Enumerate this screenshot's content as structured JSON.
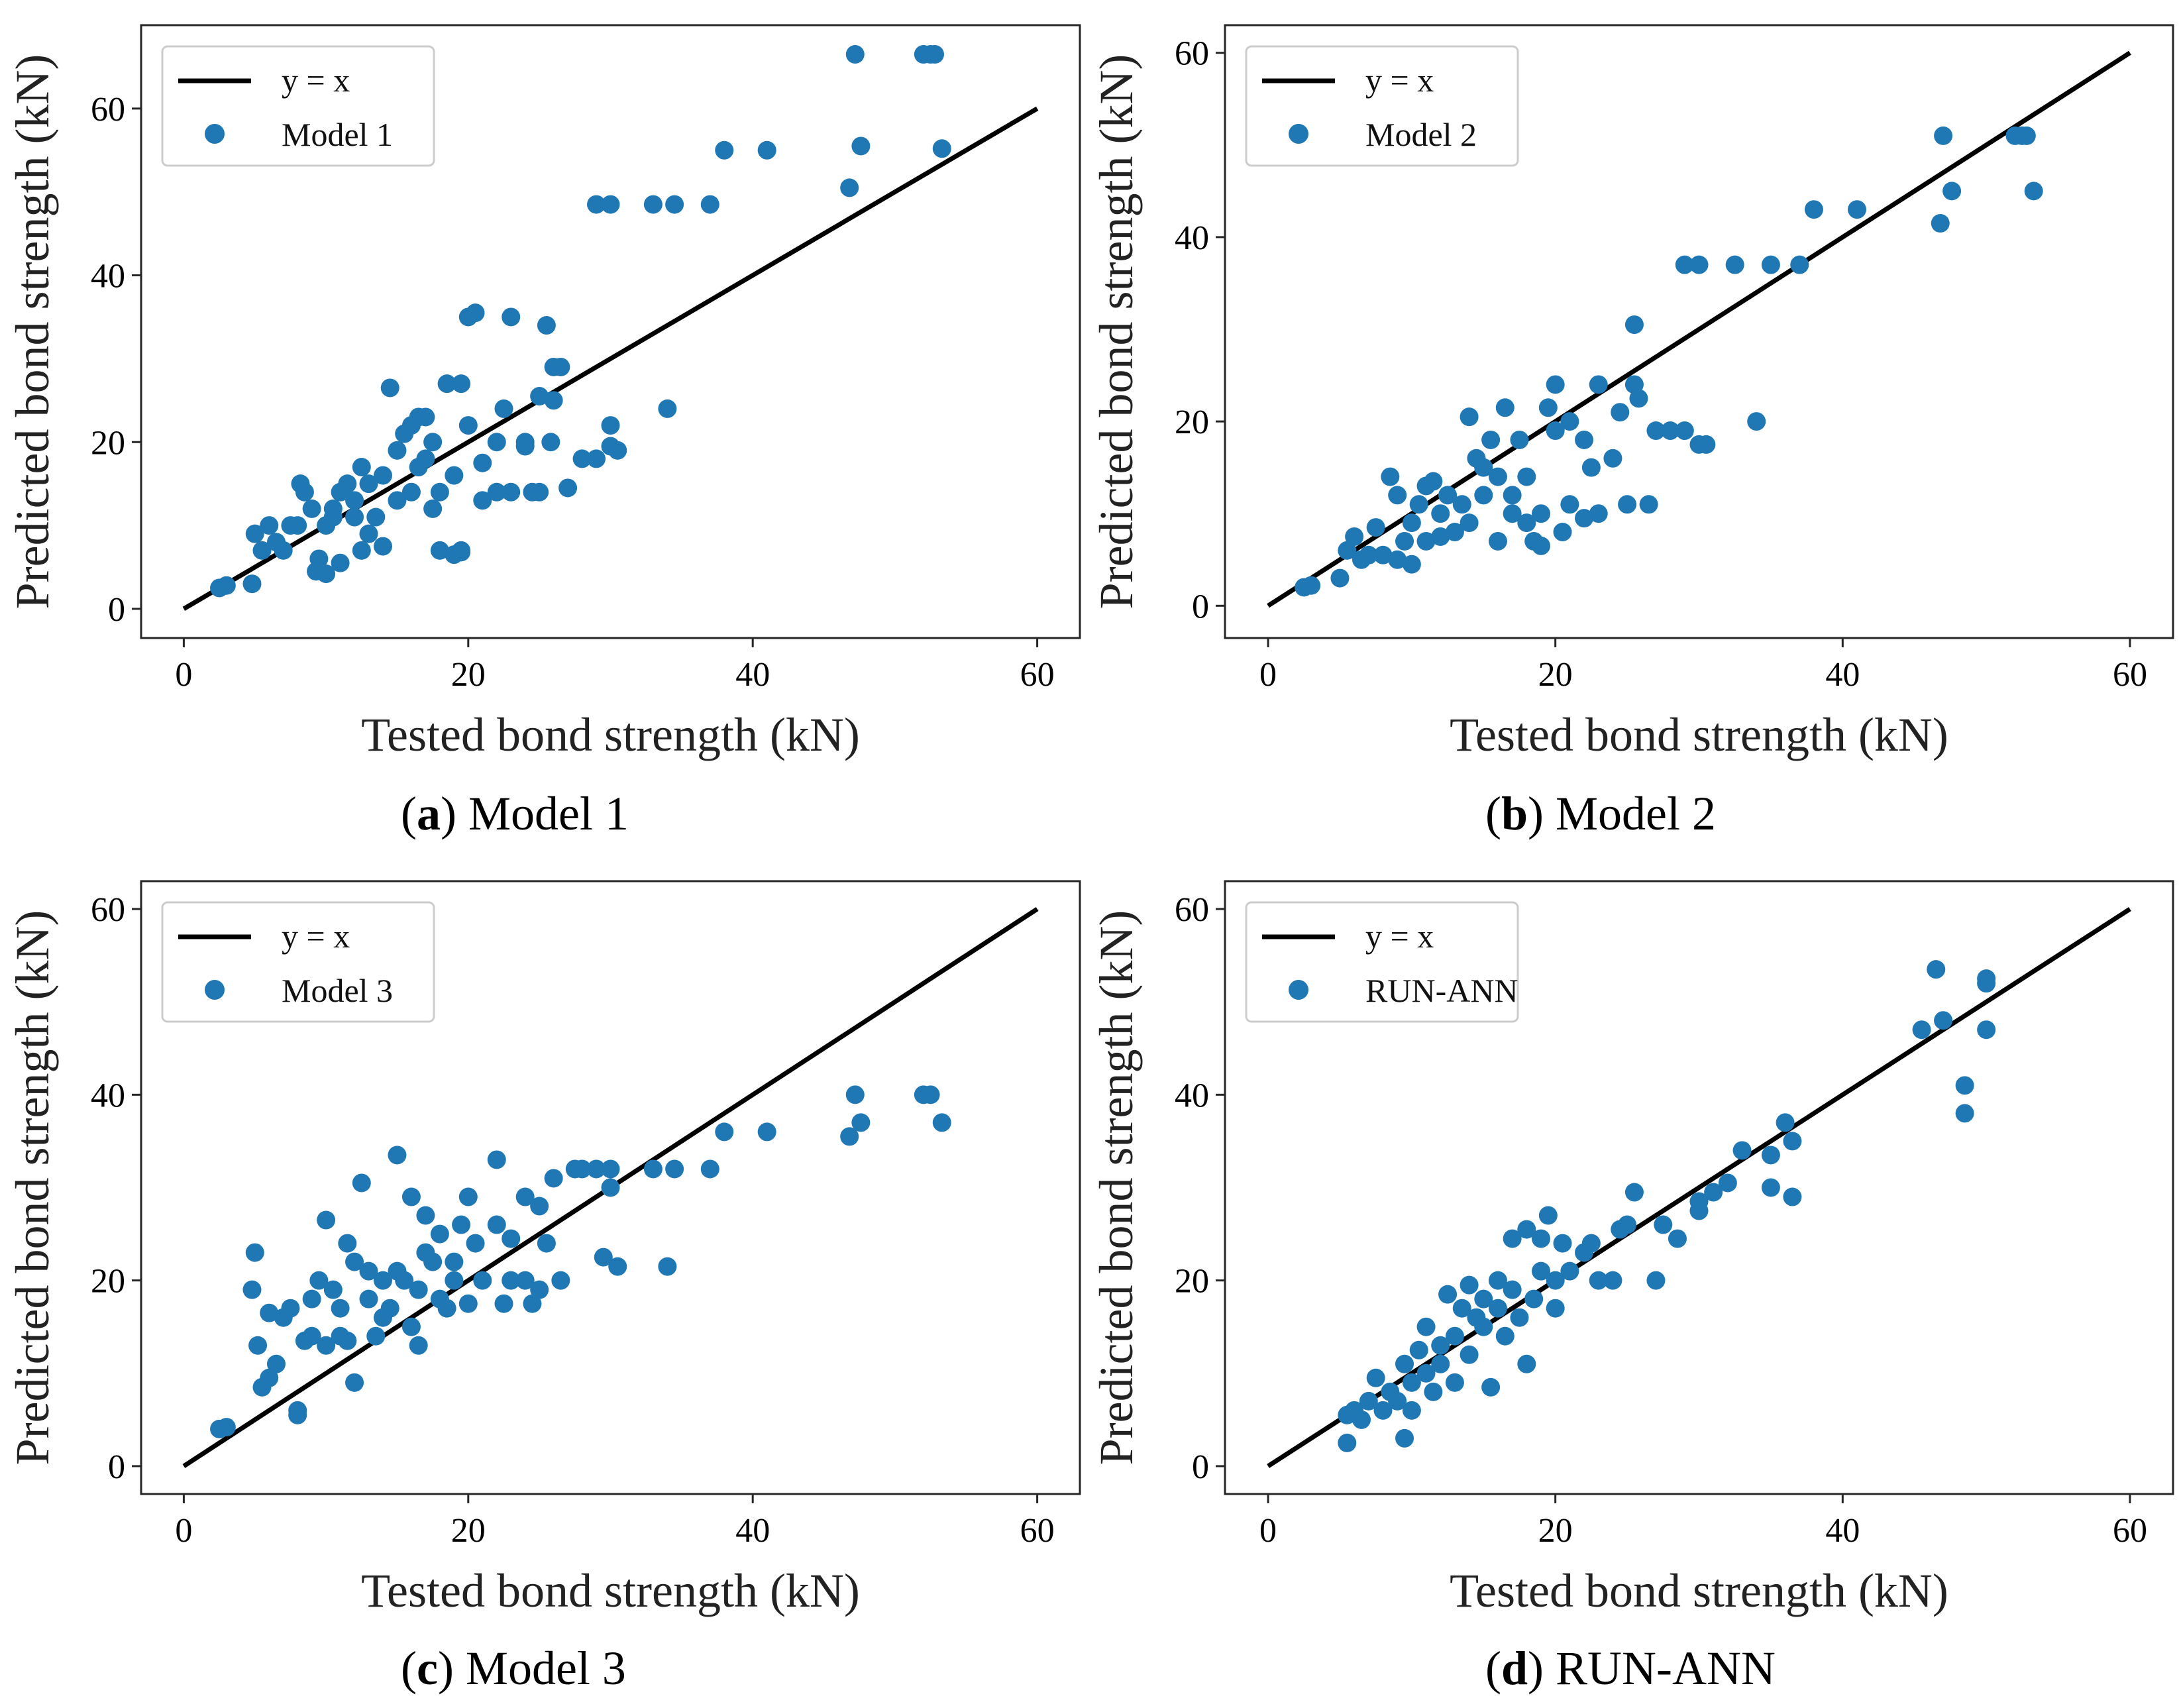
{
  "chart_data": [
    {
      "type": "scatter",
      "panel_letter": "a",
      "caption": ") Model 1",
      "title": "",
      "xlabel": "Tested bond strength (kN)",
      "ylabel": "Predicted bond strength (kN)",
      "xlim": [
        -3,
        63
      ],
      "ylim": [
        -3.5,
        70
      ],
      "xticks": [
        0,
        20,
        40,
        60
      ],
      "yticks": [
        0,
        20,
        40,
        60
      ],
      "legend": {
        "line_label": "y = x",
        "series_label": "Model 1",
        "placement": "top-left"
      },
      "reference_line": [
        [
          0,
          0
        ],
        [
          60,
          60
        ]
      ],
      "points": [
        [
          2.5,
          2.5
        ],
        [
          3,
          2.8
        ],
        [
          4.8,
          3
        ],
        [
          5,
          9
        ],
        [
          5.5,
          7
        ],
        [
          6,
          10
        ],
        [
          6.5,
          8
        ],
        [
          7,
          7
        ],
        [
          7.5,
          10
        ],
        [
          8,
          10
        ],
        [
          8.2,
          15
        ],
        [
          8.5,
          14
        ],
        [
          9,
          12
        ],
        [
          9.3,
          4.5
        ],
        [
          9.5,
          6
        ],
        [
          10,
          4.2
        ],
        [
          10,
          10
        ],
        [
          10.5,
          11
        ],
        [
          10.5,
          12
        ],
        [
          11,
          14
        ],
        [
          11,
          5.5
        ],
        [
          11.5,
          15
        ],
        [
          12,
          13
        ],
        [
          12,
          11
        ],
        [
          12.5,
          17
        ],
        [
          12.5,
          7
        ],
        [
          13,
          9
        ],
        [
          13,
          15
        ],
        [
          13.5,
          11
        ],
        [
          14,
          16
        ],
        [
          14,
          7.5
        ],
        [
          14.5,
          26.5
        ],
        [
          15,
          13
        ],
        [
          15,
          19
        ],
        [
          15.5,
          21
        ],
        [
          16,
          22
        ],
        [
          16,
          14
        ],
        [
          16.5,
          23
        ],
        [
          16.5,
          17
        ],
        [
          17,
          18
        ],
        [
          17,
          23
        ],
        [
          17.5,
          20
        ],
        [
          17.5,
          12
        ],
        [
          18,
          7
        ],
        [
          18,
          14
        ],
        [
          18.5,
          27
        ],
        [
          19,
          6.5
        ],
        [
          19,
          16
        ],
        [
          19.5,
          7
        ],
        [
          19.5,
          27
        ],
        [
          19.5,
          6.8
        ],
        [
          20,
          35
        ],
        [
          20,
          22
        ],
        [
          20.5,
          35.5
        ],
        [
          21,
          13
        ],
        [
          21,
          17.5
        ],
        [
          22,
          20
        ],
        [
          22,
          14
        ],
        [
          22.5,
          24
        ],
        [
          23,
          35
        ],
        [
          23,
          14
        ],
        [
          24,
          20
        ],
        [
          24,
          19.5
        ],
        [
          24.5,
          14
        ],
        [
          25,
          25.5
        ],
        [
          25,
          14
        ],
        [
          25.5,
          34
        ],
        [
          25.8,
          20
        ],
        [
          26,
          29
        ],
        [
          26,
          25
        ],
        [
          26.5,
          29
        ],
        [
          27,
          14.5
        ],
        [
          28,
          18
        ],
        [
          29,
          48.5
        ],
        [
          29,
          18
        ],
        [
          30,
          22
        ],
        [
          30,
          48.5
        ],
        [
          30,
          19.5
        ],
        [
          30.5,
          19
        ],
        [
          33,
          48.5
        ],
        [
          34,
          24
        ],
        [
          34.5,
          48.5
        ],
        [
          37,
          48.5
        ],
        [
          38,
          55
        ],
        [
          41,
          55
        ],
        [
          46.8,
          50.5
        ],
        [
          47.2,
          66.5
        ],
        [
          47.6,
          55.5
        ],
        [
          52,
          66.5
        ],
        [
          52.5,
          66.5
        ],
        [
          52.8,
          66.5
        ],
        [
          53.3,
          55.2
        ]
      ]
    },
    {
      "type": "scatter",
      "panel_letter": "b",
      "caption": ") Model 2",
      "title": "",
      "xlabel": "Tested bond strength (kN)",
      "ylabel": "Predicted bond strength (kN)",
      "xlim": [
        -3,
        63
      ],
      "ylim": [
        -3.5,
        63
      ],
      "xticks": [
        0,
        20,
        40,
        60
      ],
      "yticks": [
        0,
        20,
        40,
        60
      ],
      "legend": {
        "line_label": "y = x",
        "series_label": "Model 2",
        "placement": "top-left"
      },
      "reference_line": [
        [
          0,
          0
        ],
        [
          60,
          60
        ]
      ],
      "points": [
        [
          2.5,
          2
        ],
        [
          3,
          2.2
        ],
        [
          5,
          3
        ],
        [
          5.5,
          6
        ],
        [
          6,
          7.5
        ],
        [
          6.5,
          5
        ],
        [
          7,
          5.5
        ],
        [
          7.5,
          8.5
        ],
        [
          8,
          5.5
        ],
        [
          8.5,
          14
        ],
        [
          9,
          12
        ],
        [
          9,
          5
        ],
        [
          9.5,
          7
        ],
        [
          10,
          4.5
        ],
        [
          10,
          9
        ],
        [
          10.5,
          11
        ],
        [
          11,
          13
        ],
        [
          11,
          7
        ],
        [
          11.5,
          13.5
        ],
        [
          12,
          10
        ],
        [
          12,
          7.5
        ],
        [
          12.5,
          12
        ],
        [
          13,
          8
        ],
        [
          13.5,
          11
        ],
        [
          14,
          9
        ],
        [
          14,
          20.5
        ],
        [
          14.5,
          16
        ],
        [
          15,
          12
        ],
        [
          15,
          15
        ],
        [
          15.5,
          18
        ],
        [
          16,
          7
        ],
        [
          16,
          14
        ],
        [
          16.5,
          21.5
        ],
        [
          17,
          10
        ],
        [
          17,
          12
        ],
        [
          17.5,
          18
        ],
        [
          18,
          9
        ],
        [
          18,
          14
        ],
        [
          18.5,
          7
        ],
        [
          19,
          6.5
        ],
        [
          19,
          10
        ],
        [
          19.5,
          21.5
        ],
        [
          20,
          24
        ],
        [
          20,
          19
        ],
        [
          20.5,
          8
        ],
        [
          21,
          20
        ],
        [
          21,
          11
        ],
        [
          22,
          9.5
        ],
        [
          22,
          18
        ],
        [
          22.5,
          15
        ],
        [
          23,
          24
        ],
        [
          23,
          10
        ],
        [
          24,
          16
        ],
        [
          24.5,
          21
        ],
        [
          25,
          11
        ],
        [
          25.5,
          30.5
        ],
        [
          25.5,
          24
        ],
        [
          25.8,
          22.5
        ],
        [
          26.5,
          11
        ],
        [
          27,
          19
        ],
        [
          28,
          19
        ],
        [
          29,
          37
        ],
        [
          29,
          19
        ],
        [
          30,
          37
        ],
        [
          30,
          17.5
        ],
        [
          30.5,
          17.5
        ],
        [
          32.5,
          37
        ],
        [
          34,
          20
        ],
        [
          35,
          37
        ],
        [
          37,
          37
        ],
        [
          38,
          43
        ],
        [
          41,
          43
        ],
        [
          46.8,
          41.5
        ],
        [
          47,
          51
        ],
        [
          47.6,
          45
        ],
        [
          52,
          51
        ],
        [
          52.5,
          51
        ],
        [
          52.8,
          51
        ],
        [
          53.3,
          45
        ]
      ]
    },
    {
      "type": "scatter",
      "panel_letter": "c",
      "caption": ") Model 3",
      "title": "",
      "xlabel": "Tested bond strength (kN)",
      "ylabel": "Predicted bond strength (kN)",
      "xlim": [
        -3,
        63
      ],
      "ylim": [
        -3,
        63
      ],
      "xticks": [
        0,
        20,
        40,
        60
      ],
      "yticks": [
        0,
        20,
        40,
        60
      ],
      "legend": {
        "line_label": "y = x",
        "series_label": "Model 3",
        "placement": "top-left"
      },
      "reference_line": [
        [
          0,
          0
        ],
        [
          60,
          60
        ]
      ],
      "points": [
        [
          2.5,
          4
        ],
        [
          3,
          4.2
        ],
        [
          4.8,
          19
        ],
        [
          5,
          23
        ],
        [
          5.2,
          13
        ],
        [
          5.5,
          8.5
        ],
        [
          6,
          9.5
        ],
        [
          6,
          16.5
        ],
        [
          6.5,
          11
        ],
        [
          7,
          16
        ],
        [
          7.5,
          17
        ],
        [
          8,
          6
        ],
        [
          8,
          5.5
        ],
        [
          8.5,
          13.5
        ],
        [
          9,
          14
        ],
        [
          9,
          18
        ],
        [
          9.5,
          20
        ],
        [
          10,
          26.5
        ],
        [
          10,
          13
        ],
        [
          10.5,
          19
        ],
        [
          11,
          14
        ],
        [
          11,
          17
        ],
        [
          11.5,
          13.5
        ],
        [
          11.5,
          24
        ],
        [
          12,
          9
        ],
        [
          12,
          22
        ],
        [
          12.5,
          30.5
        ],
        [
          13,
          18
        ],
        [
          13,
          21
        ],
        [
          13.5,
          14
        ],
        [
          14,
          16
        ],
        [
          14,
          20
        ],
        [
          14.5,
          17
        ],
        [
          15,
          33.5
        ],
        [
          15,
          21
        ],
        [
          15.5,
          20
        ],
        [
          16,
          29
        ],
        [
          16,
          15
        ],
        [
          16.5,
          13
        ],
        [
          16.5,
          19
        ],
        [
          17,
          27
        ],
        [
          17,
          23
        ],
        [
          17.5,
          22
        ],
        [
          18,
          18
        ],
        [
          18,
          25
        ],
        [
          18.5,
          17
        ],
        [
          19,
          22
        ],
        [
          19,
          20
        ],
        [
          19.5,
          26
        ],
        [
          20,
          29
        ],
        [
          20,
          17.5
        ],
        [
          20.5,
          24
        ],
        [
          21,
          20
        ],
        [
          22,
          33
        ],
        [
          22,
          26
        ],
        [
          22.5,
          17.5
        ],
        [
          23,
          24.5
        ],
        [
          23,
          20
        ],
        [
          24,
          20
        ],
        [
          24,
          29
        ],
        [
          24.5,
          17.5
        ],
        [
          25,
          28
        ],
        [
          25,
          19
        ],
        [
          25.5,
          24
        ],
        [
          26,
          31
        ],
        [
          26.5,
          20
        ],
        [
          27.5,
          32
        ],
        [
          28,
          32
        ],
        [
          29,
          32
        ],
        [
          29.5,
          22.5
        ],
        [
          30,
          30
        ],
        [
          30,
          32
        ],
        [
          30.5,
          21.5
        ],
        [
          33,
          32
        ],
        [
          34,
          21.5
        ],
        [
          34.5,
          32
        ],
        [
          37,
          32
        ],
        [
          38,
          36
        ],
        [
          41,
          36
        ],
        [
          46.8,
          35.5
        ],
        [
          47.2,
          40
        ],
        [
          47.6,
          37
        ],
        [
          52,
          40
        ],
        [
          52.5,
          40
        ],
        [
          53.3,
          37
        ]
      ]
    },
    {
      "type": "scatter",
      "panel_letter": "d",
      "caption": ") RUN-ANN",
      "title": "",
      "xlabel": "Tested bond strength (kN)",
      "ylabel": "Predicted bond strength (kN)",
      "xlim": [
        -3,
        63
      ],
      "ylim": [
        -3,
        63
      ],
      "xticks": [
        0,
        20,
        40,
        60
      ],
      "yticks": [
        0,
        20,
        40,
        60
      ],
      "legend": {
        "line_label": "y = x",
        "series_label": "RUN-ANN",
        "placement": "top-left"
      },
      "reference_line": [
        [
          0,
          0
        ],
        [
          60,
          60
        ]
      ],
      "points": [
        [
          5.5,
          2.5
        ],
        [
          5.5,
          5.5
        ],
        [
          6,
          6
        ],
        [
          6.5,
          5
        ],
        [
          7,
          7
        ],
        [
          7.5,
          9.5
        ],
        [
          8,
          6
        ],
        [
          8.5,
          8
        ],
        [
          9,
          7
        ],
        [
          9.5,
          3
        ],
        [
          9.5,
          11
        ],
        [
          10,
          6
        ],
        [
          10,
          9
        ],
        [
          10.5,
          12.5
        ],
        [
          11,
          10
        ],
        [
          11,
          15
        ],
        [
          11.5,
          8
        ],
        [
          12,
          13
        ],
        [
          12,
          11
        ],
        [
          12.5,
          18.5
        ],
        [
          13,
          14
        ],
        [
          13,
          9
        ],
        [
          13.5,
          17
        ],
        [
          14,
          19.5
        ],
        [
          14,
          12
        ],
        [
          14.5,
          16
        ],
        [
          15,
          15
        ],
        [
          15,
          18
        ],
        [
          15.5,
          8.5
        ],
        [
          16,
          17
        ],
        [
          16,
          20
        ],
        [
          16.5,
          14
        ],
        [
          17,
          24.5
        ],
        [
          17,
          19
        ],
        [
          17.5,
          16
        ],
        [
          18,
          25.5
        ],
        [
          18,
          11
        ],
        [
          18.5,
          18
        ],
        [
          19,
          24.5
        ],
        [
          19,
          21
        ],
        [
          19.5,
          27
        ],
        [
          20,
          20
        ],
        [
          20,
          17
        ],
        [
          20.5,
          24
        ],
        [
          21,
          21
        ],
        [
          22,
          23
        ],
        [
          22.5,
          24
        ],
        [
          23,
          20
        ],
        [
          24,
          20
        ],
        [
          24.5,
          25.5
        ],
        [
          25,
          26
        ],
        [
          25.5,
          29.5
        ],
        [
          27,
          20
        ],
        [
          27.5,
          26
        ],
        [
          28.5,
          24.5
        ],
        [
          30,
          27.5
        ],
        [
          30,
          28.5
        ],
        [
          31,
          29.5
        ],
        [
          32,
          30.5
        ],
        [
          33,
          34
        ],
        [
          35,
          33.5
        ],
        [
          35,
          30
        ],
        [
          36,
          37
        ],
        [
          36.5,
          35
        ],
        [
          36.5,
          29
        ],
        [
          45.5,
          47
        ],
        [
          46.5,
          53.5
        ],
        [
          47,
          48
        ],
        [
          48.5,
          41
        ],
        [
          48.5,
          38
        ],
        [
          50,
          52.5
        ],
        [
          50,
          52
        ],
        [
          50,
          47
        ]
      ]
    }
  ]
}
